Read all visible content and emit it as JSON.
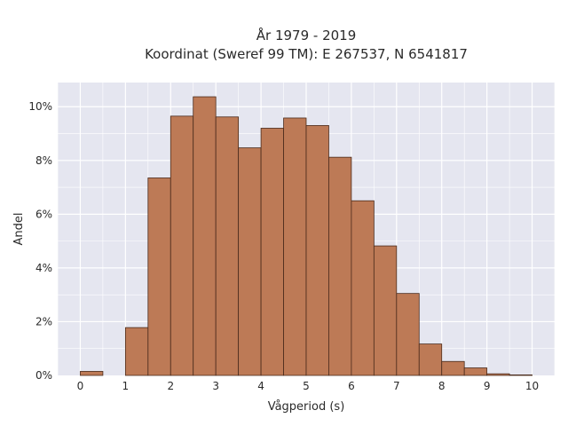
{
  "chart_data": {
    "type": "bar",
    "title_line1": "År 1979 - 2019",
    "title_line2": "Koordinat (Sweref 99 TM): E 267537, N 6541817",
    "xlabel": "Vågperiod (s)",
    "ylabel": "Andel",
    "bin_width": 0.5,
    "bins": [
      {
        "start": 0.0,
        "value": 0.15
      },
      {
        "start": 0.5,
        "value": 0.0
      },
      {
        "start": 1.0,
        "value": 1.78
      },
      {
        "start": 1.5,
        "value": 7.35
      },
      {
        "start": 2.0,
        "value": 9.65
      },
      {
        "start": 2.5,
        "value": 10.37
      },
      {
        "start": 3.0,
        "value": 9.62
      },
      {
        "start": 3.5,
        "value": 8.47
      },
      {
        "start": 4.0,
        "value": 9.2
      },
      {
        "start": 4.5,
        "value": 9.58
      },
      {
        "start": 5.0,
        "value": 9.3
      },
      {
        "start": 5.5,
        "value": 8.12
      },
      {
        "start": 6.0,
        "value": 6.5
      },
      {
        "start": 6.5,
        "value": 4.82
      },
      {
        "start": 7.0,
        "value": 3.05
      },
      {
        "start": 7.5,
        "value": 1.17
      },
      {
        "start": 8.0,
        "value": 0.52
      },
      {
        "start": 8.5,
        "value": 0.28
      },
      {
        "start": 9.0,
        "value": 0.06
      },
      {
        "start": 9.5,
        "value": 0.02
      }
    ],
    "xlim": [
      -0.5,
      10.5
    ],
    "ylim": [
      0,
      10.9
    ],
    "xticks": [
      0,
      1,
      2,
      3,
      4,
      5,
      6,
      7,
      8,
      9,
      10
    ],
    "xtick_labels": [
      "0",
      "1",
      "2",
      "3",
      "4",
      "5",
      "6",
      "7",
      "8",
      "9",
      "10"
    ],
    "yticks": [
      0,
      2,
      4,
      6,
      8,
      10
    ],
    "ytick_labels": [
      "0%",
      "2%",
      "4%",
      "6%",
      "8%",
      "10%"
    ],
    "grid": true,
    "colors": {
      "bar_fill": "#bd7a56",
      "bar_stroke": "#4a2b1c",
      "plot_bg": "#e5e6f0",
      "grid": "#ffffff"
    }
  }
}
